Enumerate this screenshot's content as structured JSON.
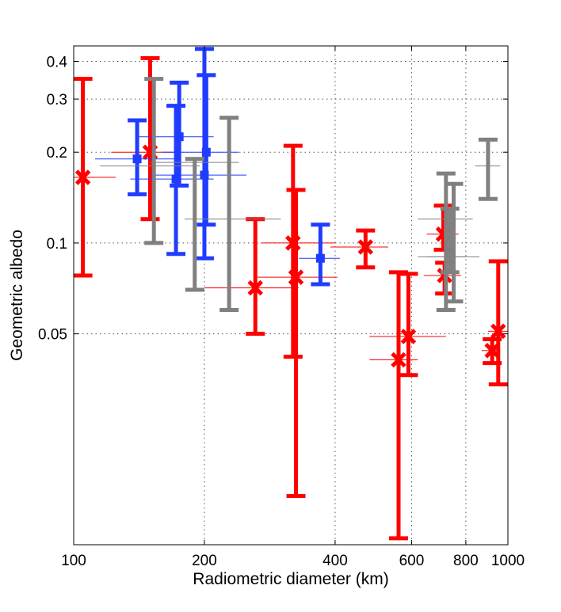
{
  "chart_data": {
    "type": "scatter",
    "title": "",
    "xlabel": "Radiometric diameter (km)",
    "ylabel": "Geometric albedo",
    "x_scale": "log",
    "y_scale": "log",
    "xlim": [
      100,
      1000
    ],
    "ylim": [
      0.01,
      0.45
    ],
    "x_ticks": [
      100,
      200,
      400,
      600,
      800,
      1000
    ],
    "x_tick_labels": [
      "100",
      "200",
      "400",
      "600",
      "800",
      "1000"
    ],
    "y_ticks": [
      0.05,
      0.1,
      0.2,
      0.3,
      0.4
    ],
    "y_tick_labels": [
      "0.05",
      "0.1",
      "0.2",
      "0.3",
      "0.4"
    ],
    "grid": true,
    "colors": {
      "red": "#ff0000",
      "blue": "#1f3cff",
      "gray": "#808080"
    },
    "series": [
      {
        "name": "red",
        "color": "#ff0000",
        "marker": "x",
        "points": [
          {
            "x": 105,
            "y": 0.165,
            "xerr": [
              100,
              125
            ],
            "yerr": [
              0.078,
              0.35
            ]
          },
          {
            "x": 150,
            "y": 0.2,
            "xerr": [
              122,
              175
            ],
            "yerr": [
              0.12,
              0.41
            ]
          },
          {
            "x": 262,
            "y": 0.071,
            "xerr": [
              200,
              330
            ],
            "yerr": [
              0.05,
              0.12
            ]
          },
          {
            "x": 320,
            "y": 0.1,
            "xerr": [
              270,
              400
            ],
            "yerr": [
              0.042,
              0.21
            ]
          },
          {
            "x": 325,
            "y": 0.077,
            "xerr": [
              265,
              405
            ],
            "yerr": [
              0.0145,
              0.15
            ]
          },
          {
            "x": 470,
            "y": 0.097,
            "xerr": [
              390,
              530
            ],
            "yerr": [
              0.083,
              0.11
            ]
          },
          {
            "x": 560,
            "y": 0.041,
            "xerr": [
              480,
              620
            ],
            "yerr": [
              0.0105,
              0.08
            ]
          },
          {
            "x": 590,
            "y": 0.049,
            "xerr": [
              480,
              720
            ],
            "yerr": [
              0.0365,
              0.079
            ]
          },
          {
            "x": 715,
            "y": 0.078,
            "xerr": [
              640,
              780
            ],
            "yerr": [
              0.068,
              0.086
            ]
          },
          {
            "x": 710,
            "y": 0.107,
            "xerr": [
              650,
              770
            ],
            "yerr": [
              0.095,
              0.133
            ]
          },
          {
            "x": 920,
            "y": 0.044,
            "xerr": [
              870,
              960
            ],
            "yerr": [
              0.04,
              0.048
            ]
          },
          {
            "x": 950,
            "y": 0.051,
            "xerr": [
              900,
              1000
            ],
            "yerr": [
              0.034,
              0.087
            ]
          }
        ]
      },
      {
        "name": "blue",
        "color": "#1f3cff",
        "marker": "square",
        "points": [
          {
            "x": 140,
            "y": 0.19,
            "xerr": [
              112,
              175
            ],
            "yerr": [
              0.145,
              0.255
            ]
          },
          {
            "x": 175,
            "y": 0.225,
            "xerr": [
              140,
              210
            ],
            "yerr": [
              0.155,
              0.34
            ]
          },
          {
            "x": 172,
            "y": 0.163,
            "xerr": [
              135,
              210
            ],
            "yerr": [
              0.092,
              0.285
            ]
          },
          {
            "x": 202,
            "y": 0.2,
            "xerr": [
              160,
              240
            ],
            "yerr": [
              0.115,
              0.36
            ]
          },
          {
            "x": 200,
            "y": 0.168,
            "xerr": [
              150,
              250
            ],
            "yerr": [
              0.089,
              0.44
            ]
          },
          {
            "x": 370,
            "y": 0.089,
            "xerr": [
              330,
              410
            ],
            "yerr": [
              0.073,
              0.115
            ]
          }
        ]
      },
      {
        "name": "gray",
        "color": "#808080",
        "marker": "none",
        "points": [
          {
            "x": 153,
            "y": 0.18,
            "xerr": [
              115,
              195
            ],
            "yerr": [
              0.1,
              0.35
            ]
          },
          {
            "x": 190,
            "y": 0.185,
            "xerr": [
              150,
              240
            ],
            "yerr": [
              0.07,
              0.19
            ]
          },
          {
            "x": 228,
            "y": 0.12,
            "xerr": [
              180,
              300
            ],
            "yerr": [
              0.06,
              0.26
            ]
          },
          {
            "x": 720,
            "y": 0.12,
            "xerr": [
              620,
              830
            ],
            "yerr": [
              0.06,
              0.17
            ]
          },
          {
            "x": 750,
            "y": 0.09,
            "xerr": [
              620,
              860
            ],
            "yerr": [
              0.064,
              0.157
            ]
          },
          {
            "x": 735,
            "y": 0.09,
            "xerr": [
              650,
              800
            ],
            "yerr": [
              0.08,
              0.13
            ]
          },
          {
            "x": 900,
            "y": 0.18,
            "xerr": [
              840,
              960
            ],
            "yerr": [
              0.14,
              0.22
            ]
          }
        ]
      }
    ]
  }
}
